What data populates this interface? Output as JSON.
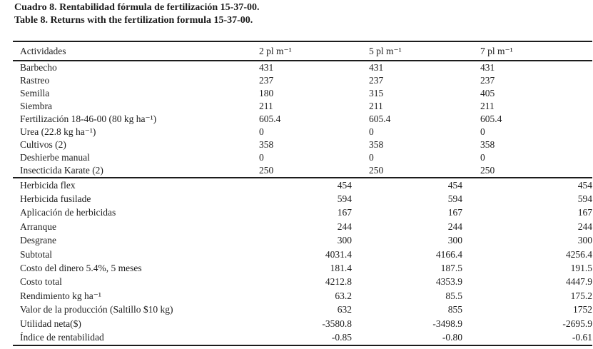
{
  "page": {
    "background": "#ffffff",
    "text_color": "#1c1c1c",
    "rule_color": "#1c1c1c"
  },
  "captions": {
    "spanish": "Cuadro 8. Rentabilidad fórmula de fertilización 15-37-00.",
    "english": "Table 8. Returns with the fertilization formula 15-37-00."
  },
  "table": {
    "header": {
      "activity": "Actividades",
      "col1": "2 pl m⁻¹",
      "col2": "5 pl m⁻¹",
      "col3": "7 pl m⁻¹"
    },
    "section1": {
      "rows": [
        {
          "label": "Barbecho",
          "values": [
            "431",
            "431",
            "431"
          ]
        },
        {
          "label": "Rastreo",
          "values": [
            "237",
            "237",
            "237"
          ]
        },
        {
          "label": "Semilla",
          "values": [
            "180",
            "315",
            "405"
          ]
        },
        {
          "label": "Siembra",
          "values": [
            "211",
            "211",
            "211"
          ]
        },
        {
          "label": "Fertilización 18-46-00 (80 kg ha⁻¹)",
          "values": [
            "605.4",
            "605.4",
            "605.4"
          ]
        },
        {
          "label": "Urea (22.8 kg ha⁻¹)",
          "values": [
            "0",
            "0",
            "0"
          ]
        },
        {
          "label": "Cultivos (2)",
          "values": [
            "358",
            "358",
            "358"
          ]
        },
        {
          "label": "Deshierbe manual",
          "values": [
            "0",
            "0",
            "0"
          ]
        },
        {
          "label": "Insecticida Karate (2)",
          "values": [
            "250",
            "250",
            "250"
          ]
        }
      ]
    },
    "section2": {
      "rows": [
        {
          "label": "Herbicida flex",
          "values": [
            "454",
            "454",
            "454"
          ]
        },
        {
          "label": "Herbicida fusilade",
          "values": [
            "594",
            "594",
            "594"
          ]
        },
        {
          "label": "Aplicación de herbicidas",
          "values": [
            "167",
            "167",
            "167"
          ]
        },
        {
          "label": "Arranque",
          "values": [
            "244",
            "244",
            "244"
          ]
        },
        {
          "label": "Desgrane",
          "values": [
            "300",
            "300",
            "300"
          ]
        },
        {
          "label": "Subtotal",
          "values": [
            "4031.4",
            "4166.4",
            "4256.4"
          ]
        },
        {
          "label": "Costo del dinero 5.4%, 5 meses",
          "values": [
            "181.4",
            "187.5",
            "191.5"
          ]
        },
        {
          "label": "Costo total",
          "values": [
            "4212.8",
            "4353.9",
            "4447.9"
          ]
        },
        {
          "label": "Rendimiento kg ha⁻¹",
          "values": [
            "63.2",
            "85.5",
            "175.2"
          ]
        },
        {
          "label": "Valor de la producción (Saltillo $10 kg)",
          "values": [
            "632",
            "855",
            "1752"
          ]
        },
        {
          "label": "Utilidad neta($)",
          "values": [
            "-3580.8",
            "-3498.9",
            "-2695.9"
          ]
        },
        {
          "label": "Índice de rentabilidad",
          "values": [
            "-0.85",
            "-0.80",
            "-0.61"
          ]
        }
      ]
    }
  }
}
